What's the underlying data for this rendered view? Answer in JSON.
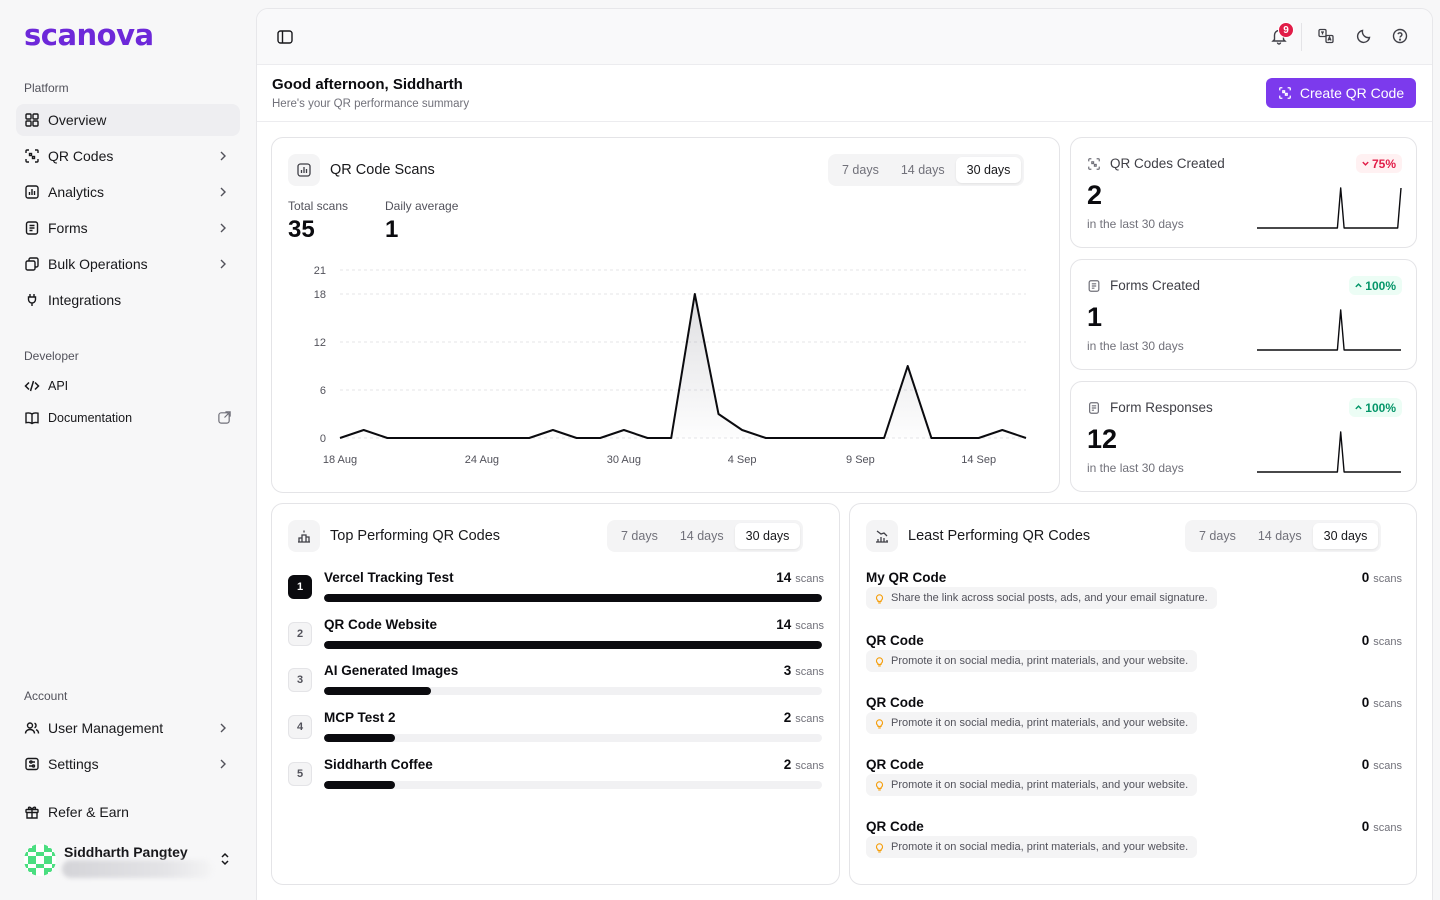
{
  "brand": {
    "name": "scanova"
  },
  "sidebar": {
    "platform_label": "Platform",
    "platform_items": [
      {
        "label": "Overview"
      },
      {
        "label": "QR Codes"
      },
      {
        "label": "Analytics"
      },
      {
        "label": "Forms"
      },
      {
        "label": "Bulk Operations"
      },
      {
        "label": "Integrations"
      }
    ],
    "developer_label": "Developer",
    "developer_items": [
      {
        "label": "API"
      },
      {
        "label": "Documentation"
      }
    ],
    "account_label": "Account",
    "account_items": [
      {
        "label": "User Management"
      },
      {
        "label": "Settings"
      }
    ],
    "refer_label": "Refer & Earn",
    "user": {
      "name": "Siddharth Pangtey"
    }
  },
  "topbar": {
    "notification_count": "9"
  },
  "header": {
    "greeting": "Good afternoon, Siddharth",
    "subtitle": "Here's your QR performance summary",
    "create_button": "Create QR Code"
  },
  "range_options": [
    "7 days",
    "14 days",
    "30 days"
  ],
  "scans_card": {
    "title": "QR Code Scans",
    "total_label": "Total scans",
    "total_value": "35",
    "avg_label": "Daily average",
    "avg_value": "1"
  },
  "chart_data": {
    "type": "area",
    "x_tick_labels": [
      "18 Aug",
      "24 Aug",
      "30 Aug",
      "4 Sep",
      "9 Sep",
      "14 Sep"
    ],
    "x_tick_index": [
      0,
      6,
      12,
      17,
      22,
      27
    ],
    "y_ticks": [
      0,
      6,
      12,
      18,
      21
    ],
    "ylim": [
      0,
      21
    ],
    "values": [
      0,
      1,
      0,
      0,
      0,
      0,
      0,
      0,
      0,
      1,
      0,
      0,
      1,
      0,
      0,
      18,
      3,
      1,
      0,
      0,
      0,
      0,
      0,
      0,
      9,
      0,
      0,
      0,
      1,
      0
    ],
    "grid": true,
    "colors": {
      "line": "#0b0b0f",
      "grid": "#e4e4e7"
    }
  },
  "metrics": [
    {
      "title": "QR Codes Created",
      "value": "2",
      "sub": "in the last 30 days",
      "change": "75%",
      "direction": "down",
      "spark": [
        0,
        0,
        0,
        0,
        0,
        0,
        0,
        0,
        0,
        0,
        0,
        0,
        0,
        0,
        0,
        0,
        0,
        0,
        0,
        0,
        0,
        0,
        0,
        0,
        0,
        1,
        0,
        0,
        0,
        0,
        0,
        0,
        0,
        0,
        0,
        0,
        0,
        0,
        0,
        0,
        0,
        0,
        0,
        1
      ]
    },
    {
      "title": "Forms Created",
      "value": "1",
      "sub": "in the last 30 days",
      "change": "100%",
      "direction": "up",
      "spark": [
        0,
        0,
        0,
        0,
        0,
        0,
        0,
        0,
        0,
        0,
        0,
        0,
        0,
        0,
        0,
        0,
        0,
        0,
        0,
        0,
        0,
        0,
        0,
        0,
        0,
        1,
        0,
        0,
        0,
        0,
        0,
        0,
        0,
        0,
        0,
        0,
        0,
        0,
        0,
        0,
        0,
        0,
        0,
        0
      ]
    },
    {
      "title": "Form Responses",
      "value": "12",
      "sub": "in the last 30 days",
      "change": "100%",
      "direction": "up",
      "spark": [
        0,
        0,
        0,
        0,
        0,
        0,
        0,
        0,
        0,
        0,
        0,
        0,
        0,
        0,
        0,
        0,
        0,
        0,
        0,
        0,
        0,
        0,
        0,
        0,
        0,
        1,
        0,
        0,
        0,
        0,
        0,
        0,
        0,
        0,
        0,
        0,
        0,
        0,
        0,
        0,
        0,
        0,
        0,
        0
      ]
    }
  ],
  "top_card": {
    "title": "Top Performing QR Codes",
    "unit": "scans",
    "items": [
      {
        "rank": "1",
        "name": "Vercel Tracking Test",
        "scans": "14",
        "fraction": 1.0
      },
      {
        "rank": "2",
        "name": "QR Code Website",
        "scans": "14",
        "fraction": 1.0
      },
      {
        "rank": "3",
        "name": "AI Generated Images",
        "scans": "3",
        "fraction": 0.214
      },
      {
        "rank": "4",
        "name": "MCP Test 2",
        "scans": "2",
        "fraction": 0.143
      },
      {
        "rank": "5",
        "name": "Siddharth Coffee",
        "scans": "2",
        "fraction": 0.143
      }
    ]
  },
  "least_card": {
    "title": "Least Performing QR Codes",
    "unit": "scans",
    "items": [
      {
        "name": "My QR Code",
        "scans": "0",
        "tip": "Share the link across social posts, ads, and your email signature."
      },
      {
        "name": "QR Code",
        "scans": "0",
        "tip": "Promote it on social media, print materials, and your website."
      },
      {
        "name": "QR Code",
        "scans": "0",
        "tip": "Promote it on social media, print materials, and your website."
      },
      {
        "name": "QR Code",
        "scans": "0",
        "tip": "Promote it on social media, print materials, and your website."
      },
      {
        "name": "QR Code",
        "scans": "0",
        "tip": "Promote it on social media, print materials, and your website."
      }
    ]
  }
}
